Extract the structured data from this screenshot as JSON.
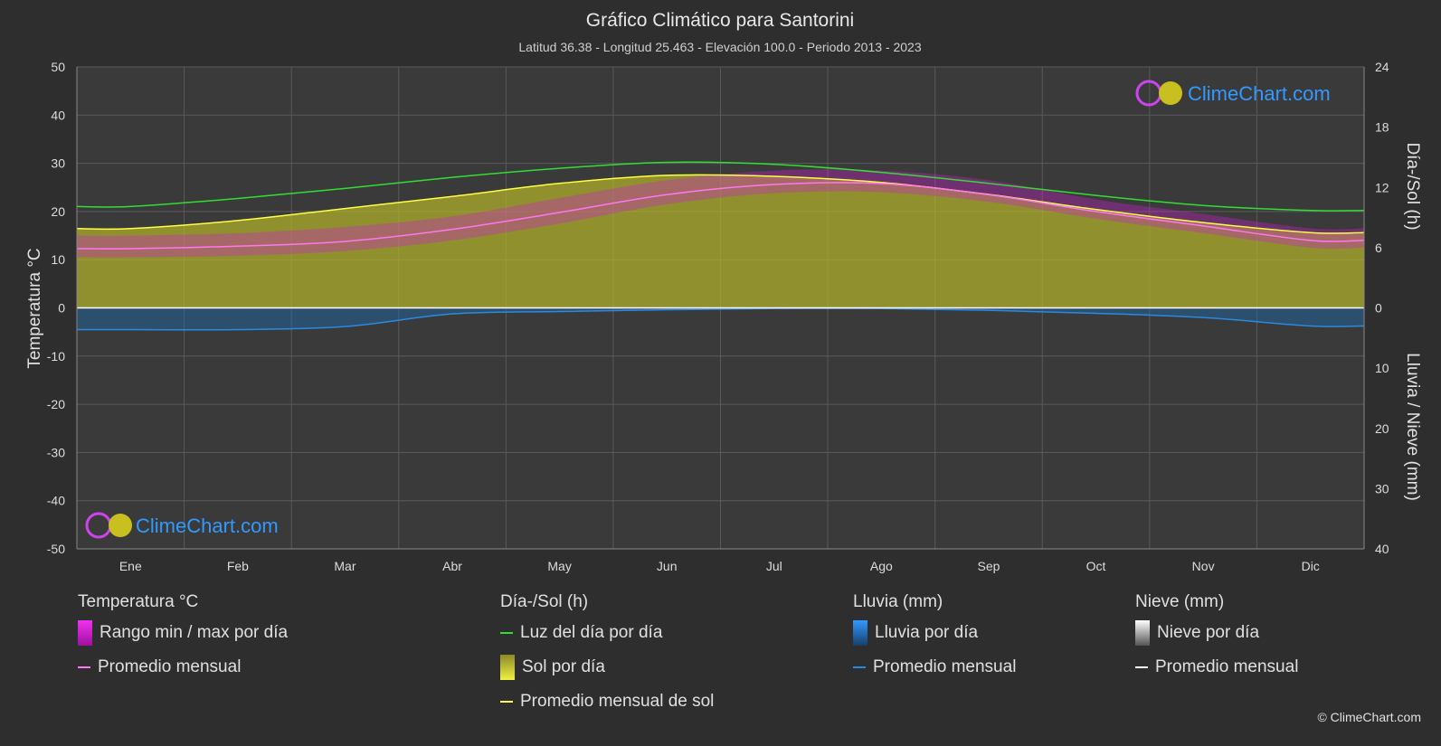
{
  "header": {
    "title": "Gráfico Climático para Santorini",
    "subtitle": "Latitud 36.38 - Longitud 25.463 - Elevación 100.0 - Periodo 2013 - 2023"
  },
  "axes": {
    "left_label": "Temperatura °C",
    "right_top_label": "Día-/Sol (h)",
    "right_bottom_label": "Lluvia / Nieve (mm)"
  },
  "brand": {
    "name": "ClimeChart.com",
    "copyright": "© ClimeChart.com"
  },
  "colors": {
    "background": "#2e2e2e",
    "plot_background": "#3a3a3a",
    "grid": "#5a5a5a",
    "daylight": "#33dd33",
    "sunshine_fill": "#b5b52a",
    "sunshine_line": "#ffff44",
    "temp_range": "#d020d0",
    "temp_avg": "#ff77ee",
    "rain_fill": "#1a6aaa",
    "rain_line": "#2a8ae0",
    "snow_line": "#ffffff",
    "brand": "#3399ff"
  },
  "legend": {
    "groups": [
      {
        "title": "Temperatura °C",
        "items": [
          {
            "label": "Rango min / max por día",
            "swatch": "box-magenta"
          },
          {
            "label": "Promedio mensual",
            "swatch": "line-pink"
          }
        ]
      },
      {
        "title": "Día-/Sol (h)",
        "items": [
          {
            "label": "Luz del día por día",
            "swatch": "line-green"
          },
          {
            "label": "Sol por día",
            "swatch": "box-yellow"
          },
          {
            "label": "Promedio mensual de sol",
            "swatch": "line-yellow"
          }
        ]
      },
      {
        "title": "Lluvia (mm)",
        "items": [
          {
            "label": "Lluvia por día",
            "swatch": "box-blue"
          },
          {
            "label": "Promedio mensual",
            "swatch": "line-blue"
          }
        ]
      },
      {
        "title": "Nieve (mm)",
        "items": [
          {
            "label": "Nieve por día",
            "swatch": "box-white"
          },
          {
            "label": "Promedio mensual",
            "swatch": "line-white"
          }
        ]
      }
    ]
  },
  "chart_data": {
    "type": "line",
    "categories": [
      "Ene",
      "Feb",
      "Mar",
      "Abr",
      "May",
      "Jun",
      "Jul",
      "Ago",
      "Sep",
      "Oct",
      "Nov",
      "Dic"
    ],
    "y_left": {
      "label": "Temperatura °C",
      "range": [
        -50,
        50
      ],
      "ticks": [
        50,
        40,
        30,
        20,
        10,
        0,
        -10,
        -20,
        -30,
        -40,
        -50
      ]
    },
    "y_right_top": {
      "label": "Día-/Sol (h)",
      "range": [
        0,
        24
      ],
      "ticks": [
        24,
        18,
        12,
        6,
        0
      ]
    },
    "y_right_bottom": {
      "label": "Lluvia / Nieve (mm)",
      "range": [
        0,
        40
      ],
      "ticks": [
        0,
        10,
        20,
        30,
        40
      ]
    },
    "grid": true,
    "series": [
      {
        "name": "Luz del día por día",
        "axis": "hours",
        "values": [
          10.1,
          10.9,
          11.9,
          13.0,
          13.9,
          14.5,
          14.3,
          13.5,
          12.4,
          11.2,
          10.2,
          9.7
        ]
      },
      {
        "name": "Promedio mensual de sol",
        "axis": "hours",
        "values": [
          7.9,
          8.7,
          9.9,
          11.1,
          12.4,
          13.2,
          13.1,
          12.5,
          11.3,
          9.8,
          8.5,
          7.5
        ]
      },
      {
        "name": "Sol por día",
        "axis": "hours",
        "style": "area",
        "values": [
          7.9,
          8.7,
          9.9,
          11.1,
          12.4,
          13.2,
          13.1,
          12.5,
          11.3,
          9.8,
          8.5,
          7.5
        ]
      },
      {
        "name": "Promedio mensual",
        "metric": "temperature",
        "axis": "temp",
        "values": [
          12.3,
          12.8,
          13.8,
          16.3,
          19.8,
          23.5,
          25.6,
          25.8,
          23.5,
          20.0,
          17.0,
          14.0
        ]
      },
      {
        "name": "Rango min / max por día",
        "axis": "temp",
        "style": "band",
        "min": [
          10.5,
          10.8,
          11.8,
          14.0,
          17.5,
          21.5,
          23.8,
          24.0,
          22.0,
          18.5,
          15.5,
          12.5
        ],
        "max": [
          15.0,
          15.5,
          16.8,
          19.0,
          22.8,
          26.5,
          28.5,
          28.5,
          26.5,
          22.5,
          19.5,
          16.5
        ]
      },
      {
        "name": "Promedio mensual",
        "metric": "rain",
        "axis": "precip",
        "values": [
          3.6,
          3.6,
          3.1,
          1.0,
          0.6,
          0.3,
          0.1,
          0.1,
          0.4,
          0.9,
          1.6,
          3.0
        ]
      },
      {
        "name": "Promedio mensual",
        "metric": "snow",
        "axis": "precip",
        "values": [
          0,
          0,
          0,
          0,
          0,
          0,
          0,
          0,
          0,
          0,
          0,
          0
        ]
      }
    ]
  }
}
